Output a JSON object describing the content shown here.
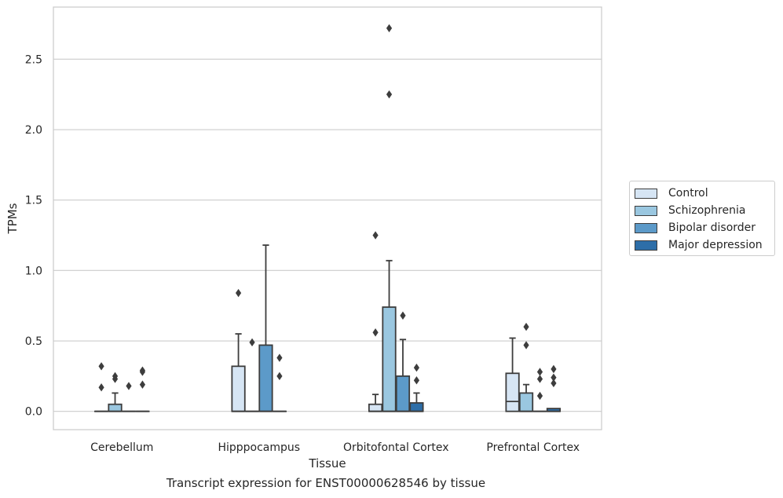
{
  "caption": "Transcript expression for ENST00000628546 by tissue",
  "chart_data": {
    "type": "box",
    "title": "",
    "xlabel": "Tissue",
    "ylabel": "TPMs",
    "ylim": [
      -0.13,
      2.87
    ],
    "yticks": [
      0.0,
      0.5,
      1.0,
      1.5,
      2.0,
      2.5
    ],
    "ytick_labels": [
      "0.0",
      "0.5",
      "1.0",
      "1.5",
      "2.0",
      "2.5"
    ],
    "grid": "horizontal",
    "legend_position": "right-outside",
    "categories": [
      "Cerebellum",
      "Hipppocampus",
      "Orbitofontal Cortex",
      "Prefrontal Cortex"
    ],
    "series": [
      {
        "name": "Control",
        "color": "#d6e5f4",
        "boxes": [
          {
            "min": 0,
            "q1": 0,
            "median": 0,
            "q3": 0,
            "max": 0,
            "outliers": [
              0.32,
              0.17
            ]
          },
          {
            "min": 0,
            "q1": 0,
            "median": 0,
            "q3": 0.32,
            "max": 0.55,
            "outliers": [
              0.84
            ]
          },
          {
            "min": 0,
            "q1": 0,
            "median": 0,
            "q3": 0.05,
            "max": 0.12,
            "outliers": [
              1.25,
              0.56
            ]
          },
          {
            "min": 0,
            "q1": 0,
            "median": 0.07,
            "q3": 0.27,
            "max": 0.52,
            "outliers": []
          }
        ]
      },
      {
        "name": "Schizophrenia",
        "color": "#9ac7e0",
        "boxes": [
          {
            "min": 0,
            "q1": 0,
            "median": 0,
            "q3": 0.05,
            "max": 0.13,
            "outliers": [
              0.25,
              0.23
            ]
          },
          {
            "min": 0,
            "q1": 0,
            "median": 0,
            "q3": 0,
            "max": 0,
            "outliers": [
              0.49
            ]
          },
          {
            "min": 0,
            "q1": 0,
            "median": 0,
            "q3": 0.74,
            "max": 1.07,
            "outliers": [
              2.72,
              2.25
            ]
          },
          {
            "min": 0,
            "q1": 0,
            "median": 0,
            "q3": 0.13,
            "max": 0.19,
            "outliers": [
              0.6,
              0.47
            ]
          }
        ]
      },
      {
        "name": "Bipolar disorder",
        "color": "#5c9ac9",
        "boxes": [
          {
            "min": 0,
            "q1": 0,
            "median": 0,
            "q3": 0,
            "max": 0,
            "outliers": [
              0.18
            ]
          },
          {
            "min": 0,
            "q1": 0,
            "median": 0,
            "q3": 0.47,
            "max": 1.18,
            "outliers": []
          },
          {
            "min": 0,
            "q1": 0,
            "median": 0,
            "q3": 0.25,
            "max": 0.51,
            "outliers": [
              0.68
            ]
          },
          {
            "min": 0,
            "q1": 0,
            "median": 0,
            "q3": 0,
            "max": 0,
            "outliers": [
              0.28,
              0.23,
              0.11
            ]
          }
        ]
      },
      {
        "name": "Major depression",
        "color": "#2d6ea8",
        "boxes": [
          {
            "min": 0,
            "q1": 0,
            "median": 0,
            "q3": 0,
            "max": 0,
            "outliers": [
              0.29,
              0.28,
              0.19
            ]
          },
          {
            "min": 0,
            "q1": 0,
            "median": 0,
            "q3": 0,
            "max": 0,
            "outliers": [
              0.38,
              0.25
            ]
          },
          {
            "min": 0,
            "q1": 0,
            "median": 0,
            "q3": 0.06,
            "max": 0.13,
            "outliers": [
              0.31,
              0.22
            ]
          },
          {
            "min": 0,
            "q1": 0,
            "median": 0,
            "q3": 0.02,
            "max": 0.02,
            "outliers": [
              0.3,
              0.24,
              0.2
            ]
          }
        ]
      }
    ]
  }
}
